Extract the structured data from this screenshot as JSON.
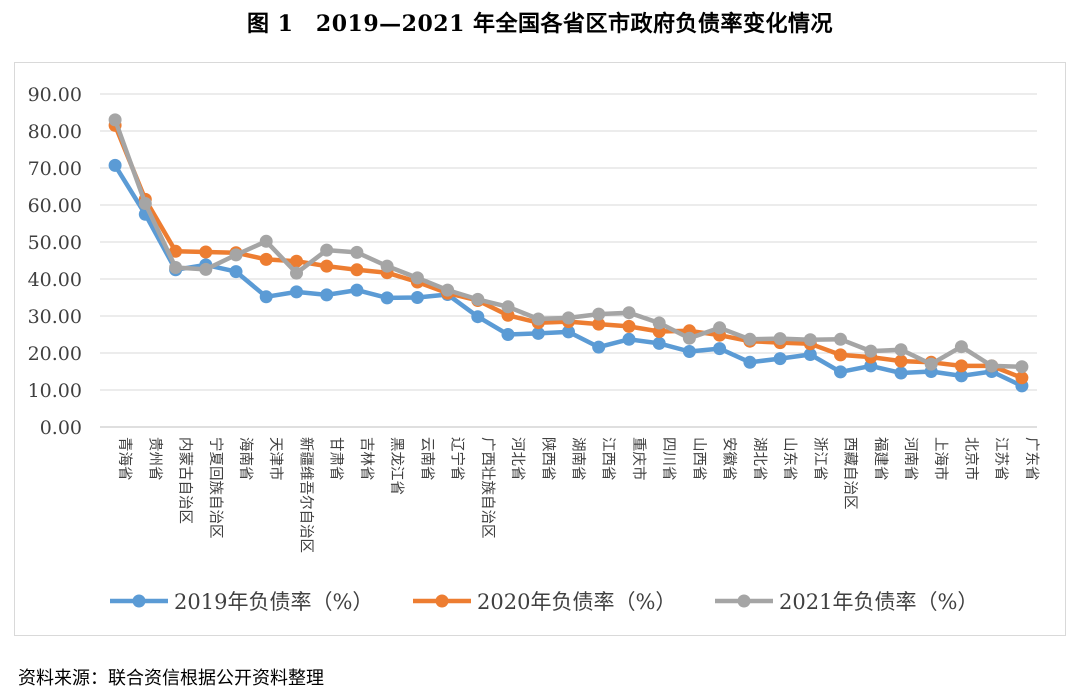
{
  "header": {
    "figure_title": "图 1　2019—2021 年全国各省区市政府负债率变化情况"
  },
  "footer": {
    "source": "资料来源：联合资信根据公开资料整理"
  },
  "chart_data": {
    "type": "line",
    "title": "图 1　2019—2021 年全国各省区市政府负债率变化情况",
    "xlabel": "",
    "ylabel": "",
    "ylim": [
      0,
      90
    ],
    "yticks": [
      "0.00",
      "10.00",
      "20.00",
      "30.00",
      "40.00",
      "50.00",
      "60.00",
      "70.00",
      "80.00",
      "90.00"
    ],
    "grid": true,
    "legend_position": "bottom",
    "categories": [
      "青海省",
      "贵州省",
      "内蒙古自治区",
      "宁夏回族自治区",
      "海南省",
      "天津市",
      "新疆维吾尔自治区",
      "甘肃省",
      "吉林省",
      "黑龙江省",
      "云南省",
      "辽宁省",
      "广西壮族自治区",
      "河北省",
      "陕西省",
      "湖南省",
      "江西省",
      "重庆市",
      "四川省",
      "山西省",
      "安徽省",
      "湖北省",
      "山东省",
      "浙江省",
      "西藏自治区",
      "福建省",
      "河南省",
      "上海市",
      "北京市",
      "江苏省",
      "广东省"
    ],
    "series": [
      {
        "name": "2019年负债率（%）",
        "color": "#5b9bd5",
        "values": [
          70.7,
          57.5,
          42.5,
          43.8,
          42.0,
          35.2,
          36.5,
          35.7,
          37.0,
          34.9,
          35.0,
          35.8,
          29.8,
          25.0,
          25.3,
          25.7,
          21.6,
          23.7,
          22.6,
          20.4,
          21.2,
          17.5,
          18.5,
          19.6,
          14.9,
          16.5,
          14.6,
          15.0,
          13.8,
          15.0,
          11.1
        ]
      },
      {
        "name": "2020年负债率（%）",
        "color": "#ed7d31",
        "values": [
          81.5,
          61.5,
          47.5,
          47.3,
          47.1,
          45.3,
          44.8,
          43.5,
          42.5,
          41.7,
          39.2,
          36.2,
          34.2,
          30.2,
          28.2,
          28.5,
          27.8,
          27.2,
          25.8,
          26.0,
          24.8,
          23.2,
          22.8,
          22.5,
          19.5,
          18.9,
          17.8,
          17.5,
          16.5,
          16.5,
          13.3
        ]
      },
      {
        "name": "2021年负债率（%）",
        "color": "#a5a5a5",
        "values": [
          83.0,
          60.4,
          43.1,
          42.6,
          46.5,
          50.2,
          41.6,
          47.8,
          47.2,
          43.5,
          40.3,
          37.0,
          34.5,
          32.5,
          29.2,
          29.5,
          30.5,
          30.9,
          28.1,
          24.0,
          26.8,
          23.7,
          23.9,
          23.6,
          23.7,
          20.5,
          20.9,
          17.0,
          21.7,
          16.5,
          16.3
        ]
      }
    ]
  }
}
